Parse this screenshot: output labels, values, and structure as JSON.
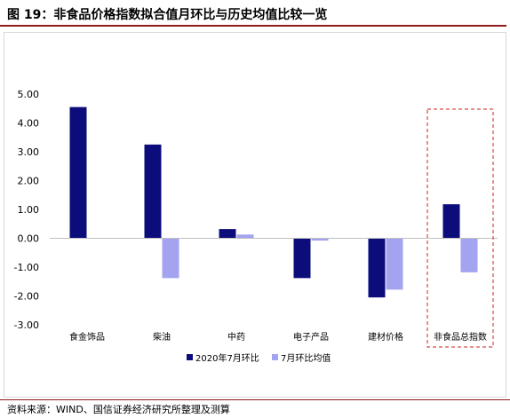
{
  "title": "图 19：非食品价格指数拟合值月环比与历史均值比较一览",
  "source": "资料来源：WIND、国信证券经济研究所整理及测算",
  "chart_data": {
    "type": "bar",
    "categories": [
      "食金饰品",
      "柴油",
      "中药",
      "电子产品",
      "建材价格",
      "非食品总指数"
    ],
    "series": [
      {
        "name": "2020年7月环比",
        "values": [
          4.55,
          3.25,
          0.32,
          -1.38,
          -2.05,
          1.18
        ],
        "color": "#0c0c7a"
      },
      {
        "name": "7月环比均值",
        "values": [
          0,
          -1.38,
          0.13,
          -0.08,
          -1.78,
          -1.18
        ],
        "color": "#a3a3f0"
      }
    ],
    "y_ticks": [
      "5.00",
      "4.00",
      "3.00",
      "2.00",
      "1.00",
      "0.00",
      "-1.00",
      "-2.00",
      "-3.00"
    ],
    "ylim": [
      -3,
      5
    ],
    "xlabel": "",
    "ylabel": "",
    "grid": false,
    "legend": "bottom-center",
    "highlight_category": "非食品总指数",
    "highlight_color": "#cc2222"
  }
}
